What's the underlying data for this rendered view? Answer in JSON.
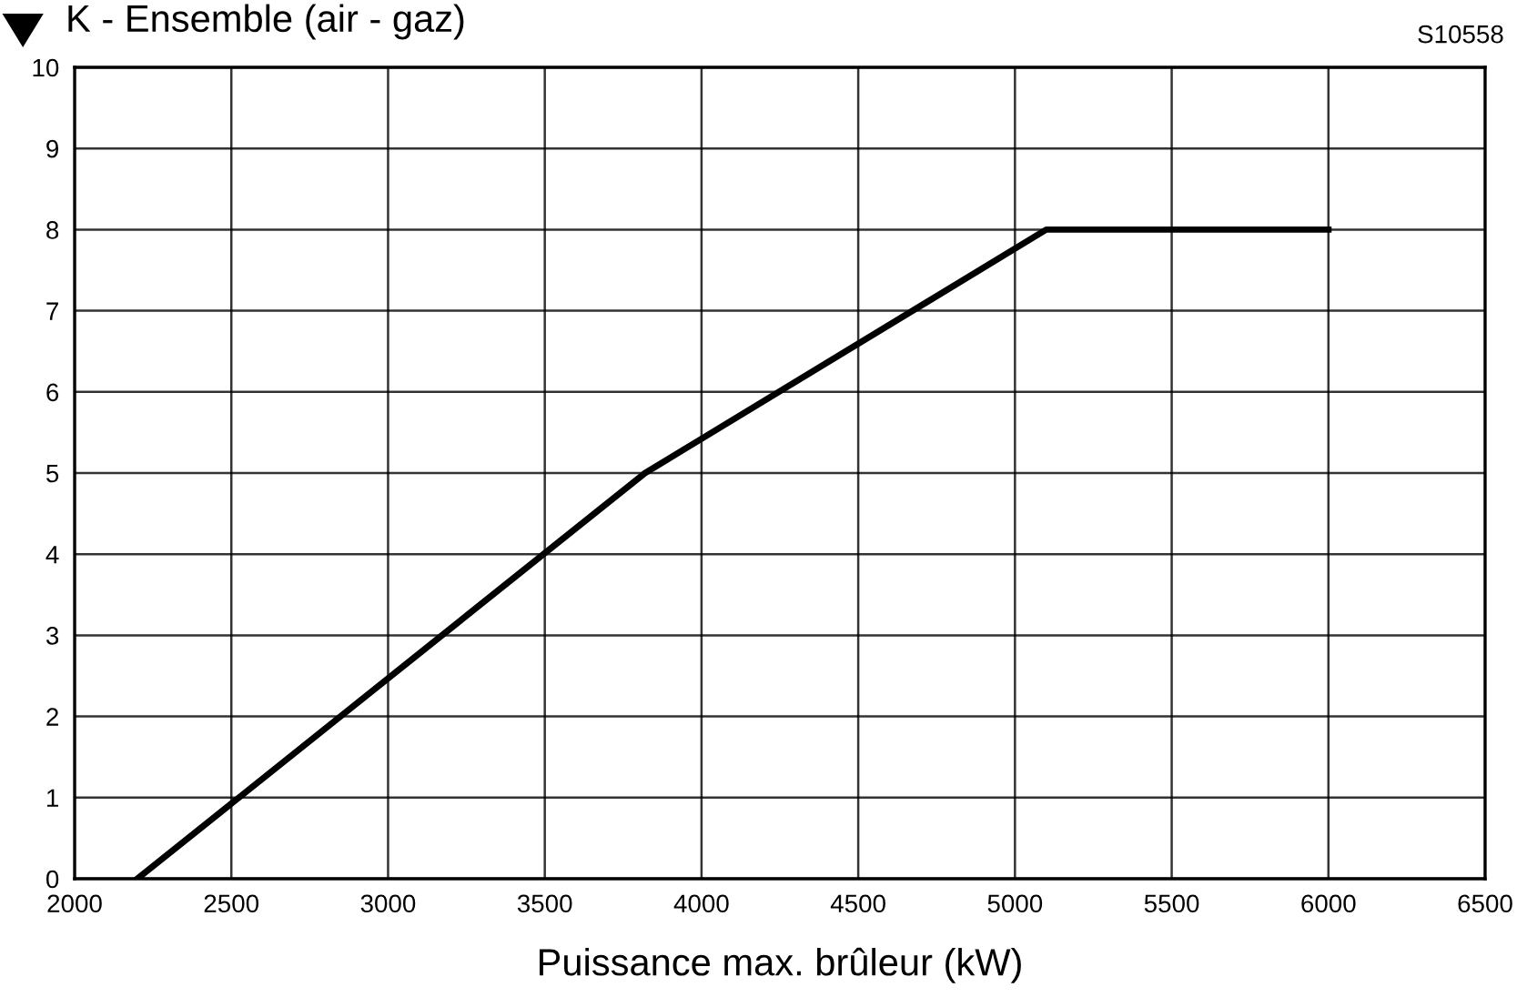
{
  "chart_data": {
    "type": "line",
    "title": "K - Ensemble (air - gaz)",
    "xlabel": "Puissance max. brûleur (kW)",
    "annotations": [
      "S10558"
    ],
    "x": [
      2200,
      3820,
      5100,
      6000
    ],
    "series": [
      {
        "color": "#000000",
        "values": [
          0,
          5,
          8,
          8
        ]
      }
    ],
    "xlim": [
      2000,
      6500
    ],
    "xticks": [
      2000,
      2500,
      3000,
      3500,
      4000,
      4500,
      5000,
      5500,
      6000,
      6500
    ],
    "ylim": [
      0,
      10
    ],
    "yticks": [
      0,
      1,
      2,
      3,
      4,
      5,
      6,
      7,
      8,
      9,
      10
    ],
    "grid": true,
    "marker": "none",
    "line_style": "solid"
  }
}
